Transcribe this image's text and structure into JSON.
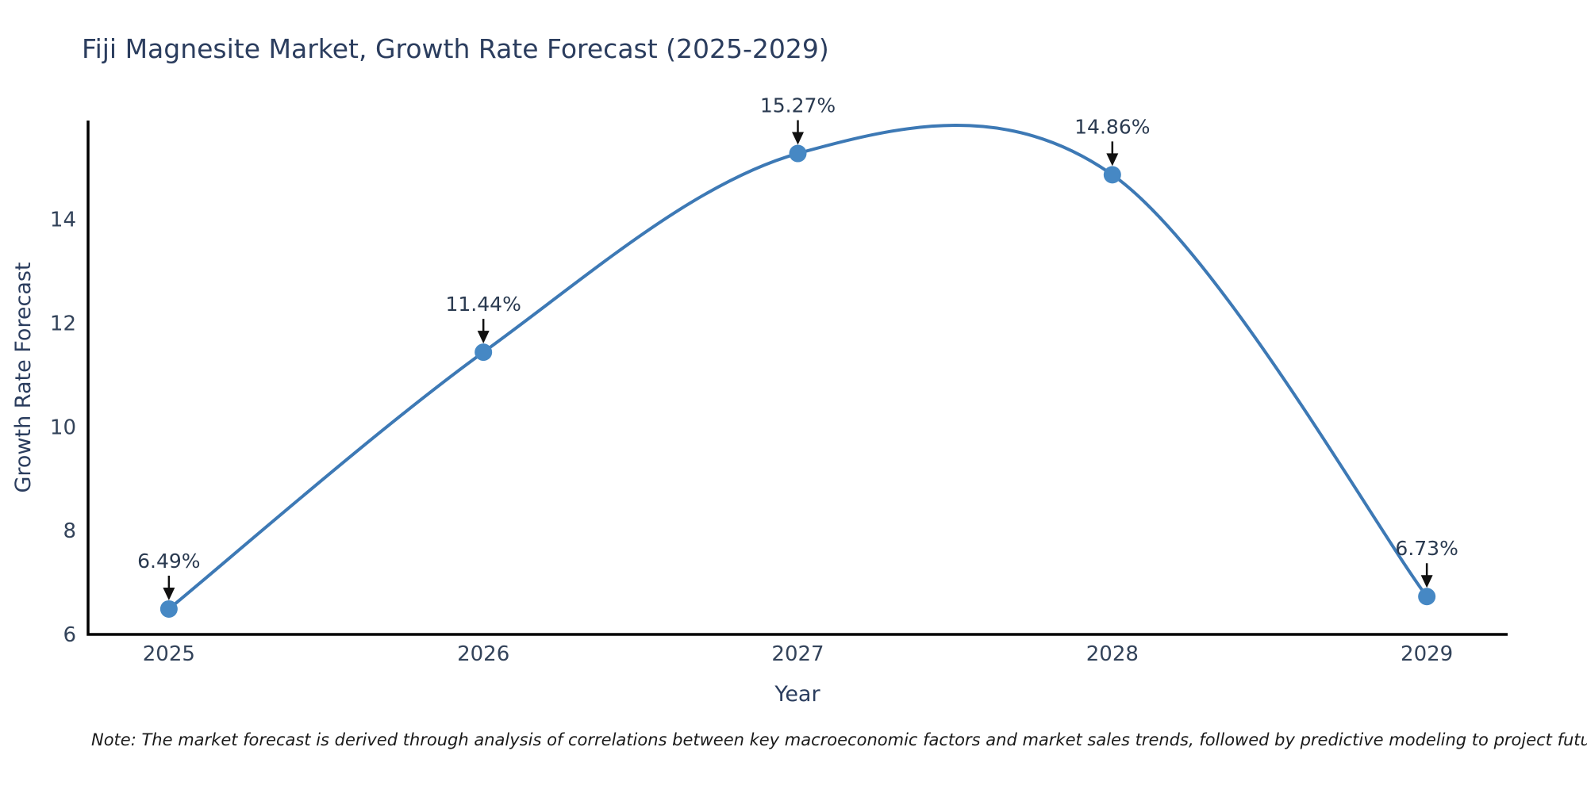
{
  "chart_data": {
    "type": "line",
    "title": "Fiji Magnesite Market, Growth Rate Forecast (2025-2029)",
    "xlabel": "Year",
    "ylabel": "Growth Rate Forecast",
    "x": [
      2025,
      2026,
      2027,
      2028,
      2029
    ],
    "series": [
      {
        "name": "Growth Rate Forecast",
        "values": [
          6.49,
          11.44,
          15.27,
          14.86,
          6.73
        ]
      }
    ],
    "point_labels": [
      "6.49%",
      "11.44%",
      "15.27%",
      "14.86%",
      "6.73%"
    ],
    "xticks": [
      "2025",
      "2026",
      "2027",
      "2028",
      "2029"
    ],
    "yticks": [
      6,
      8,
      10,
      12,
      14
    ],
    "xlim": [
      2024.743,
      2029.257
    ],
    "ylim": [
      6,
      15.905
    ],
    "grid": false,
    "legend": "none",
    "line_shape": "spline",
    "marker": "circle",
    "colors": {
      "line": "#3d79b5",
      "marker": "#4688c4",
      "axis": "#000000",
      "arrow": "#111111",
      "title_text": "#2b3d5e",
      "tick_text": "#33435a"
    },
    "note": "Note: The market forecast is derived through analysis of correlations between key macroeconomic factors and market sales trends, followed by predictive modeling to project future sales"
  }
}
